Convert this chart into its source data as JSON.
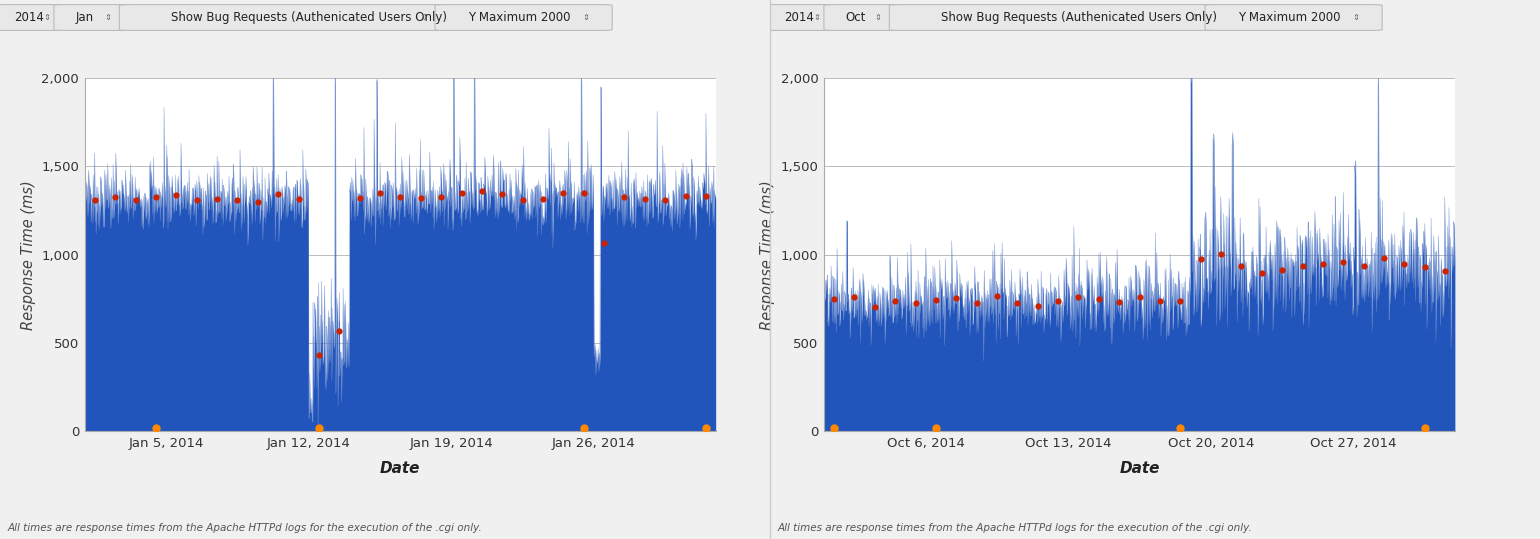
{
  "fig_bg": "#f0f0f0",
  "chart_bg": "#ffffff",
  "bar_color": "#2255bb",
  "line_color": "#6688cc",
  "dot_color": "#cc2200",
  "orange_dot_color": "#ff8800",
  "grid_color": "#bbbbbb",
  "ylim": [
    0,
    2000
  ],
  "yticks": [
    0,
    500,
    1000,
    1500,
    2000
  ],
  "ylabel": "Response Time (ms)",
  "xlabel": "Date",
  "footnote": "All times are response times from the Apache HTTPd logs for the execution of the .cgi only.",
  "toolbar_bg": "#f0f0f0",
  "toolbar_box_bg": "#e8e8e8",
  "toolbar_box_border": "#bbbbbb",
  "charts": [
    {
      "year": "2014",
      "month": "Jan",
      "xtick_labels": [
        "Jan 5, 2014",
        "Jan 12, 2014",
        "Jan 19, 2014",
        "Jan 26, 2014"
      ],
      "xtick_positions": [
        4,
        11,
        18,
        25
      ],
      "n_days": 31,
      "orange_dot_days": [
        3,
        11,
        24,
        30
      ]
    },
    {
      "year": "2014",
      "month": "Oct",
      "xtick_labels": [
        "Oct 6, 2014",
        "Oct 13, 2014",
        "Oct 20, 2014",
        "Oct 27, 2014"
      ],
      "xtick_positions": [
        5,
        12,
        19,
        26
      ],
      "n_days": 31,
      "orange_dot_days": [
        0,
        5,
        17,
        29
      ]
    }
  ]
}
